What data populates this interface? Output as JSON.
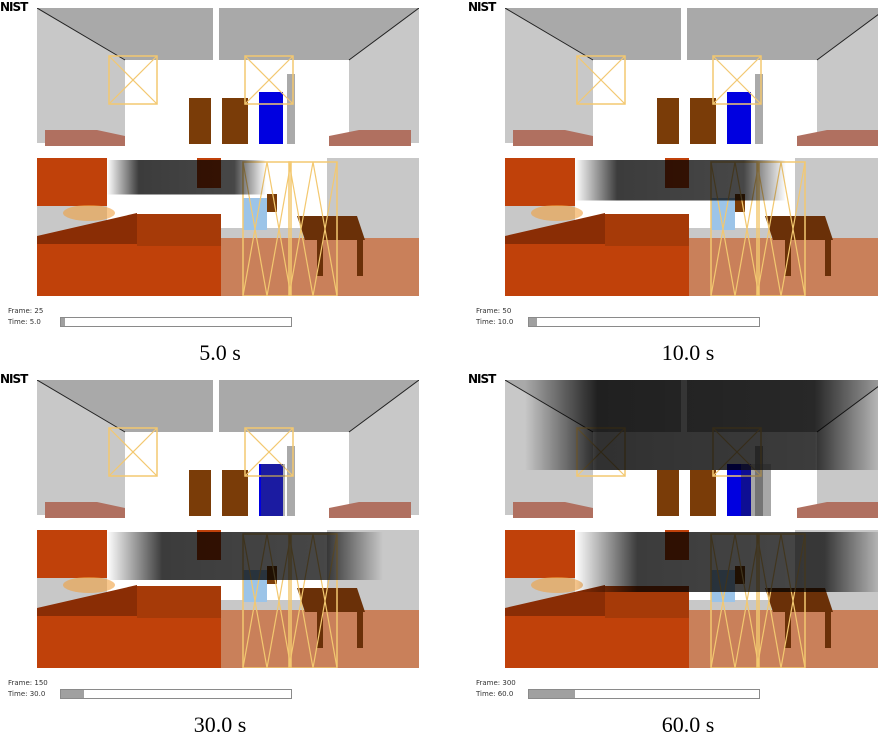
{
  "logo": "NIST",
  "panels": [
    {
      "frame": "Frame: 25",
      "time": "Time:  5.0",
      "caption": "5.0 s",
      "progress": 0.017,
      "smoke": 0.15
    },
    {
      "frame": "Frame: 50",
      "time": "Time: 10.0",
      "caption": "10.0 s",
      "progress": 0.033,
      "smoke": 0.35
    },
    {
      "frame": "Frame: 150",
      "time": "Time: 30.0",
      "caption": "30.0 s",
      "progress": 0.1,
      "smoke": 0.6
    },
    {
      "frame": "Frame: 300",
      "time": "Time: 60.0",
      "caption": "60.0 s",
      "progress": 0.2,
      "smoke": 1.0
    }
  ],
  "colors": {
    "ceiling": "#a9a9a9",
    "wall_white": "#ffffff",
    "furniture_orange": "#c0410a",
    "floor": "#c9805a",
    "door_brown": "#7a3c08",
    "door_blue": "#0000e0",
    "vent_outline": "#f3c870",
    "smoke": "#000000"
  }
}
